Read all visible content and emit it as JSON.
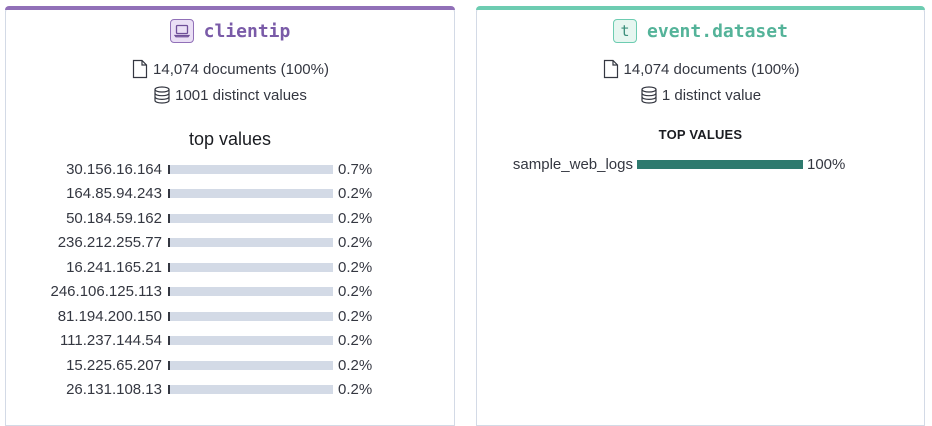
{
  "cards": [
    {
      "id": "clientip",
      "title": "clientip",
      "type_icon": "laptop-icon",
      "accent_color": "#9170b8",
      "documents": "14,074 documents (100%)",
      "distinct": "1001 distinct values",
      "top_values_heading": "top values",
      "bar_fill_color": "#343741",
      "top_values": [
        {
          "label": "30.156.16.164",
          "percent": "0.7%",
          "fraction": 0.007
        },
        {
          "label": "164.85.94.243",
          "percent": "0.2%",
          "fraction": 0.002
        },
        {
          "label": "50.184.59.162",
          "percent": "0.2%",
          "fraction": 0.002
        },
        {
          "label": "236.212.255.77",
          "percent": "0.2%",
          "fraction": 0.002
        },
        {
          "label": "16.241.165.21",
          "percent": "0.2%",
          "fraction": 0.002
        },
        {
          "label": "246.106.125.113",
          "percent": "0.2%",
          "fraction": 0.002
        },
        {
          "label": "81.194.200.150",
          "percent": "0.2%",
          "fraction": 0.002
        },
        {
          "label": "111.237.144.54",
          "percent": "0.2%",
          "fraction": 0.002
        },
        {
          "label": "15.225.65.207",
          "percent": "0.2%",
          "fraction": 0.002
        },
        {
          "label": "26.131.108.13",
          "percent": "0.2%",
          "fraction": 0.002
        }
      ]
    },
    {
      "id": "dataset",
      "title": "event.dataset",
      "type_icon": "text-type-icon",
      "type_letter": "t",
      "accent_color": "#6dccb1",
      "documents": "14,074 documents (100%)",
      "distinct": "1 distinct value",
      "top_values_heading": "TOP VALUES",
      "bar_fill_color": "#2e7a6e",
      "top_values": [
        {
          "label": "sample_web_logs",
          "percent": "100%",
          "fraction": 1.0
        }
      ]
    }
  ]
}
